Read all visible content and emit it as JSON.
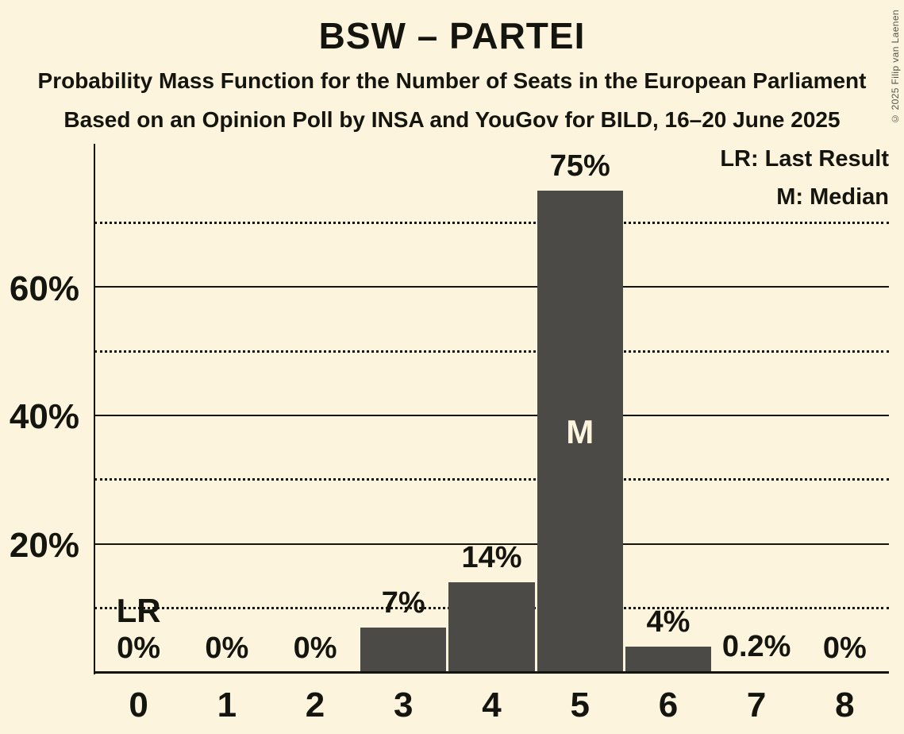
{
  "page": {
    "title": "BSW – PARTEI",
    "subtitle1": "Probability Mass Function for the Number of Seats in the European Parliament",
    "subtitle2": "Based on an Opinion Poll by INSA and YouGov for BILD, 16–20 June 2025",
    "copyright": "© 2025 Filip van Laenen"
  },
  "legend": {
    "lr": "LR: Last Result",
    "m": "M: Median"
  },
  "colors": {
    "background": "#fcf4dc",
    "bar": "#4b4a47",
    "text": "#15150f",
    "grid": "#15150f",
    "median_label_on_bar": "#fcf4dc",
    "copyright_text": "#55544c"
  },
  "chart_data": {
    "type": "bar",
    "title": "BSW – PARTEI",
    "categories": [
      "0",
      "1",
      "2",
      "3",
      "4",
      "5",
      "6",
      "7",
      "8"
    ],
    "values": [
      0,
      0,
      0,
      7,
      14,
      75,
      4,
      0.2,
      0
    ],
    "bar_labels": [
      "0%",
      "0%",
      "0%",
      "7%",
      "14%",
      "75%",
      "4%",
      "0.2%",
      "0%"
    ],
    "y_ticks": [
      {
        "value": 20,
        "label": "20%"
      },
      {
        "value": 40,
        "label": "40%"
      },
      {
        "value": 60,
        "label": "60%"
      }
    ],
    "solid_gridlines": [
      20,
      40,
      60
    ],
    "dotted_gridlines": [
      10,
      30,
      50,
      70
    ],
    "ylim": [
      0,
      82
    ],
    "grid": true,
    "legend_position": "top-right",
    "annotations": [
      {
        "type": "last_result",
        "category_index": 0,
        "text": "LR"
      },
      {
        "type": "median",
        "category_index": 5,
        "text": "M"
      }
    ]
  }
}
